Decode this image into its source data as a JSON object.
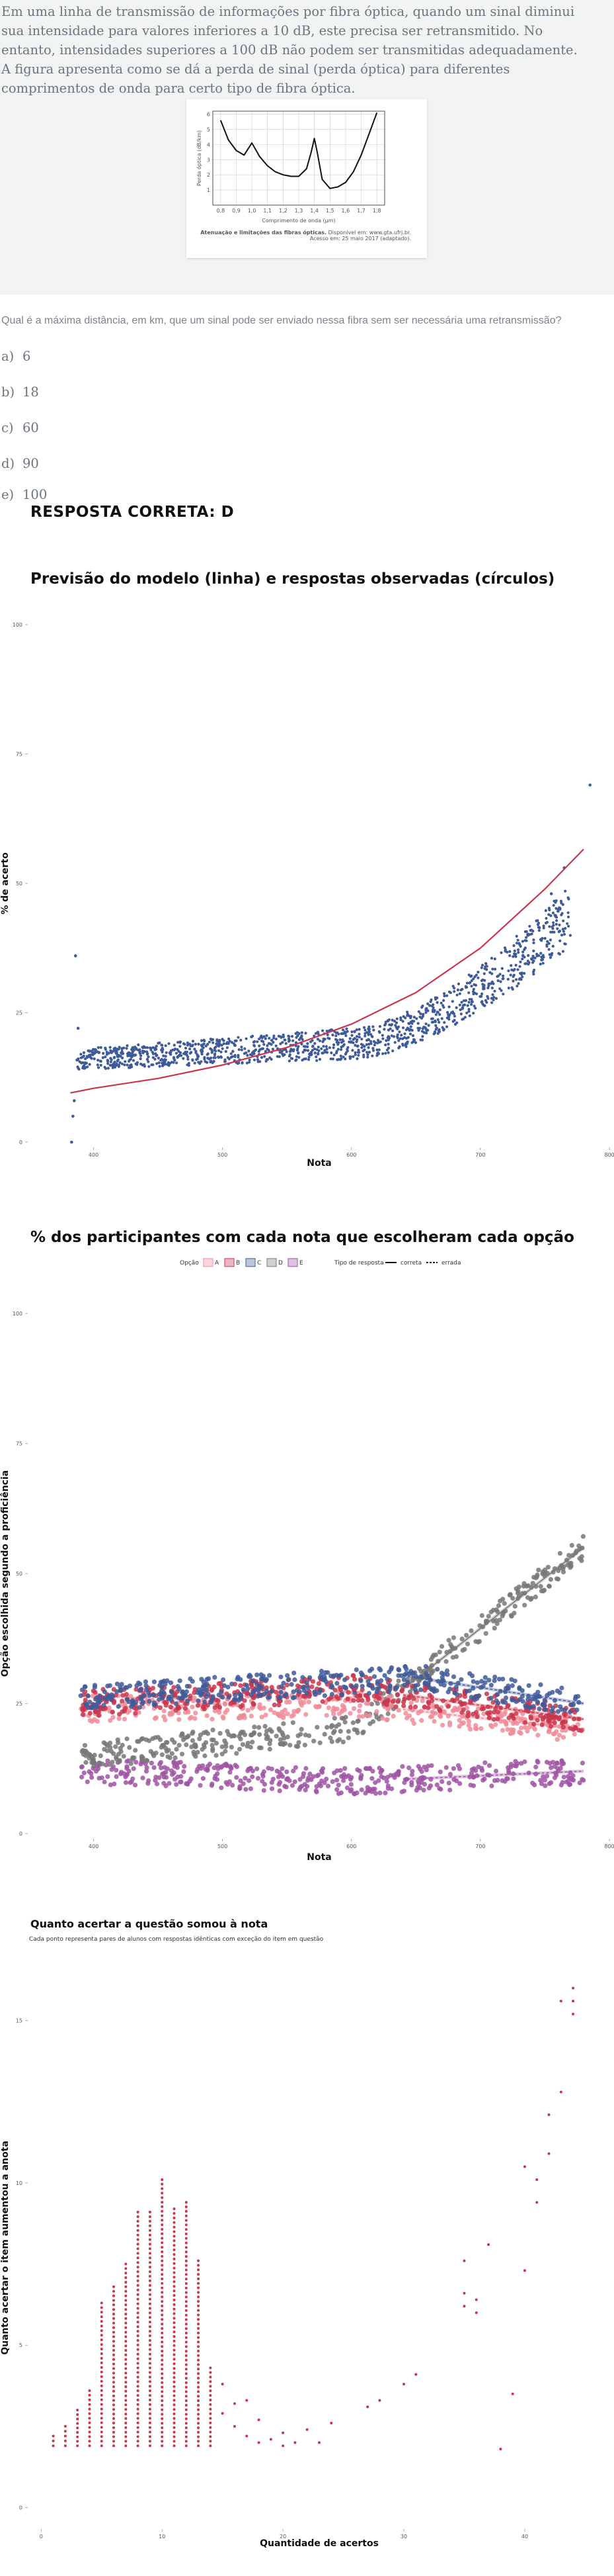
{
  "question": {
    "text": "Em uma linha de transmissão de informações por fibra óptica, quando um sinal diminui sua intensidade para valores inferiores a 10 dB, este precisa ser retransmitido. No entanto, intensidades superiores a 100 dB não podem ser transmitidas adequadamente. A figura apresenta como se dá a perda de sinal (perda óptica) para diferentes comprimentos de onda para certo tipo de fibra óptica.",
    "figure": {
      "ylabel": "Perda óptica (dB/km)",
      "xlabel": "Comprimento de onda (μm)",
      "yticks": [
        "1",
        "2",
        "3",
        "4",
        "5",
        "6"
      ],
      "xticks": [
        "0,8",
        "0,9",
        "1,0",
        "1,1",
        "1,2",
        "1,3",
        "1,4",
        "1,5",
        "1,6",
        "1,7",
        "1,8"
      ],
      "caption_bold": "Atenuação e limitações das fibras ópticas.",
      "caption_rest": " Disponível em: www.gta.ufrj.br.",
      "caption_line2": "Acesso em: 25 maio 2017 (adaptado).",
      "curve": {
        "x": [
          0.8,
          0.85,
          0.9,
          0.95,
          1.0,
          1.05,
          1.1,
          1.15,
          1.2,
          1.25,
          1.3,
          1.35,
          1.38,
          1.4,
          1.42,
          1.45,
          1.5,
          1.55,
          1.6,
          1.65,
          1.7,
          1.75,
          1.8
        ],
        "y": [
          5.6,
          4.3,
          3.6,
          3.3,
          4.1,
          3.2,
          2.6,
          2.2,
          2.0,
          1.9,
          1.9,
          2.4,
          3.5,
          4.4,
          3.4,
          1.7,
          1.1,
          1.2,
          1.5,
          2.2,
          3.3,
          4.7,
          6.1
        ]
      }
    },
    "prompt": "Qual é a máxima distância, em km, que um sinal pode ser enviado nessa fibra sem ser necessária uma retransmissão?",
    "alternatives": [
      {
        "letter": "a)",
        "value": "6"
      },
      {
        "letter": "b)",
        "value": "18"
      },
      {
        "letter": "c)",
        "value": "60"
      },
      {
        "letter": "d)",
        "value": "90"
      },
      {
        "letter": "e)",
        "value": "100"
      }
    ],
    "answer": "RESPOSTA CORRETA: D"
  },
  "colors": {
    "blue": "#3f5a99",
    "red": "#c9354b",
    "pink": "#f08c98",
    "gray": "#777777",
    "purple": "#9f53a3",
    "panel_bg": "#f2f4f3"
  },
  "chart_data": [
    {
      "type": "scatter",
      "title": "Previsão do modelo (linha) e respostas observadas (círculos)",
      "xlabel": "Nota",
      "ylabel": "% de acerto",
      "xlim": [
        350,
        800
      ],
      "ylim": [
        0,
        100
      ],
      "xticks": [
        400,
        500,
        600,
        700,
        800
      ],
      "yticks": [
        0,
        25,
        50,
        75,
        100
      ],
      "observed": {
        "band": {
          "x0": 387,
          "x1": 770,
          "start_low": 14,
          "start_high": 18,
          "flat_to": 600,
          "mid_low": 16,
          "mid_high": 22,
          "end_low": 38,
          "end_high": 50
        },
        "outliers": [
          [
            383,
            0
          ],
          [
            384,
            5
          ],
          [
            385,
            8
          ],
          [
            386,
            36
          ],
          [
            388,
            22
          ],
          [
            755,
            48
          ],
          [
            765,
            53
          ],
          [
            785,
            69
          ]
        ]
      },
      "model": {
        "x": [
          382,
          400,
          450,
          500,
          550,
          600,
          650,
          700,
          750,
          780
        ],
        "y": [
          9.5,
          10.4,
          12.3,
          14.9,
          18.3,
          22.8,
          28.9,
          37.5,
          48.9,
          56.6
        ]
      }
    },
    {
      "type": "scatter",
      "title": "% dos participantes com cada nota que escolheram cada opção",
      "xlabel": "Nota",
      "ylabel": "Opção escolhida segundo a proficiência",
      "xlim": [
        350,
        800
      ],
      "ylim": [
        0,
        100
      ],
      "xticks": [
        400,
        500,
        600,
        700,
        800
      ],
      "yticks": [
        0,
        25,
        50,
        75,
        100
      ],
      "legend": {
        "title_option": "Opção",
        "options": [
          "A",
          "B",
          "C",
          "D",
          "E"
        ],
        "title_type": "Tipo de resposta",
        "types": [
          "correta",
          "errada"
        ],
        "placement": "top"
      },
      "series": [
        {
          "name": "A",
          "start": [
            390,
            24
          ],
          "mid": [
            600,
            25
          ],
          "end": [
            780,
            20
          ]
        },
        {
          "name": "B",
          "start": [
            390,
            25
          ],
          "mid": [
            600,
            28
          ],
          "end": [
            780,
            22
          ]
        },
        {
          "name": "C",
          "start": [
            390,
            26
          ],
          "mid": [
            650,
            30
          ],
          "end": [
            780,
            25
          ]
        },
        {
          "name": "D",
          "start": [
            390,
            15
          ],
          "mid": [
            600,
            20
          ],
          "end": [
            780,
            55
          ]
        },
        {
          "name": "E",
          "start": [
            390,
            12
          ],
          "mid": [
            600,
            10
          ],
          "end": [
            780,
            12
          ]
        }
      ]
    },
    {
      "type": "scatter",
      "title": "Quanto acertar a questão somou à nota",
      "subtitle": "Cada ponto representa pares de alunos com respostas idênticas com exceção do item em questão",
      "xlabel": "Quantidade de acertos",
      "ylabel": "Quanto acertar o item aumentou a anota",
      "xlim": [
        -1,
        47
      ],
      "ylim": [
        -0.5,
        16.5
      ],
      "xticks": [
        0,
        10,
        20,
        30,
        40
      ],
      "yticks": [
        0,
        5,
        10,
        15
      ],
      "columns": [
        {
          "x": 1,
          "top": 2.2,
          "bottom": 1.9
        },
        {
          "x": 2,
          "top": 2.5,
          "bottom": 1.9
        },
        {
          "x": 3,
          "top": 3.0,
          "bottom": 1.9
        },
        {
          "x": 4,
          "top": 3.6,
          "bottom": 1.9
        },
        {
          "x": 5,
          "top": 6.3,
          "bottom": 1.9
        },
        {
          "x": 6,
          "top": 6.8,
          "bottom": 1.9
        },
        {
          "x": 7,
          "top": 7.5,
          "bottom": 1.9
        },
        {
          "x": 8,
          "top": 9.1,
          "bottom": 1.9
        },
        {
          "x": 9,
          "top": 9.1,
          "bottom": 1.9
        },
        {
          "x": 10,
          "top": 10.1,
          "bottom": 1.9
        },
        {
          "x": 11,
          "top": 9.2,
          "bottom": 1.9
        },
        {
          "x": 12,
          "top": 9.4,
          "bottom": 1.9
        },
        {
          "x": 13,
          "top": 7.6,
          "bottom": 1.9
        },
        {
          "x": 14,
          "top": 4.3,
          "bottom": 1.9
        }
      ],
      "points": [
        [
          15,
          3.8
        ],
        [
          15,
          2.9
        ],
        [
          16,
          3.2
        ],
        [
          16,
          2.5
        ],
        [
          17,
          3.3
        ],
        [
          17,
          2.2
        ],
        [
          18,
          2.0
        ],
        [
          18,
          2.7
        ],
        [
          19,
          2.1
        ],
        [
          20,
          2.3
        ],
        [
          20,
          1.9
        ],
        [
          21,
          2.0
        ],
        [
          22,
          2.4
        ],
        [
          23,
          2.0
        ],
        [
          24,
          2.6
        ],
        [
          27,
          3.1
        ],
        [
          28,
          3.3
        ],
        [
          30,
          3.8
        ],
        [
          31,
          4.1
        ],
        [
          35,
          7.6
        ],
        [
          35,
          6.6
        ],
        [
          35,
          6.2
        ],
        [
          36,
          6.0
        ],
        [
          36,
          6.4
        ],
        [
          37,
          8.1
        ],
        [
          38,
          1.8
        ],
        [
          39,
          3.5
        ],
        [
          40,
          7.3
        ],
        [
          40,
          10.5
        ],
        [
          41,
          9.4
        ],
        [
          41,
          10.1
        ],
        [
          42,
          10.9
        ],
        [
          42,
          12.1
        ],
        [
          43,
          12.8
        ],
        [
          43,
          15.6
        ],
        [
          44,
          16.0
        ],
        [
          44,
          15.2
        ],
        [
          44,
          15.6
        ]
      ]
    }
  ]
}
